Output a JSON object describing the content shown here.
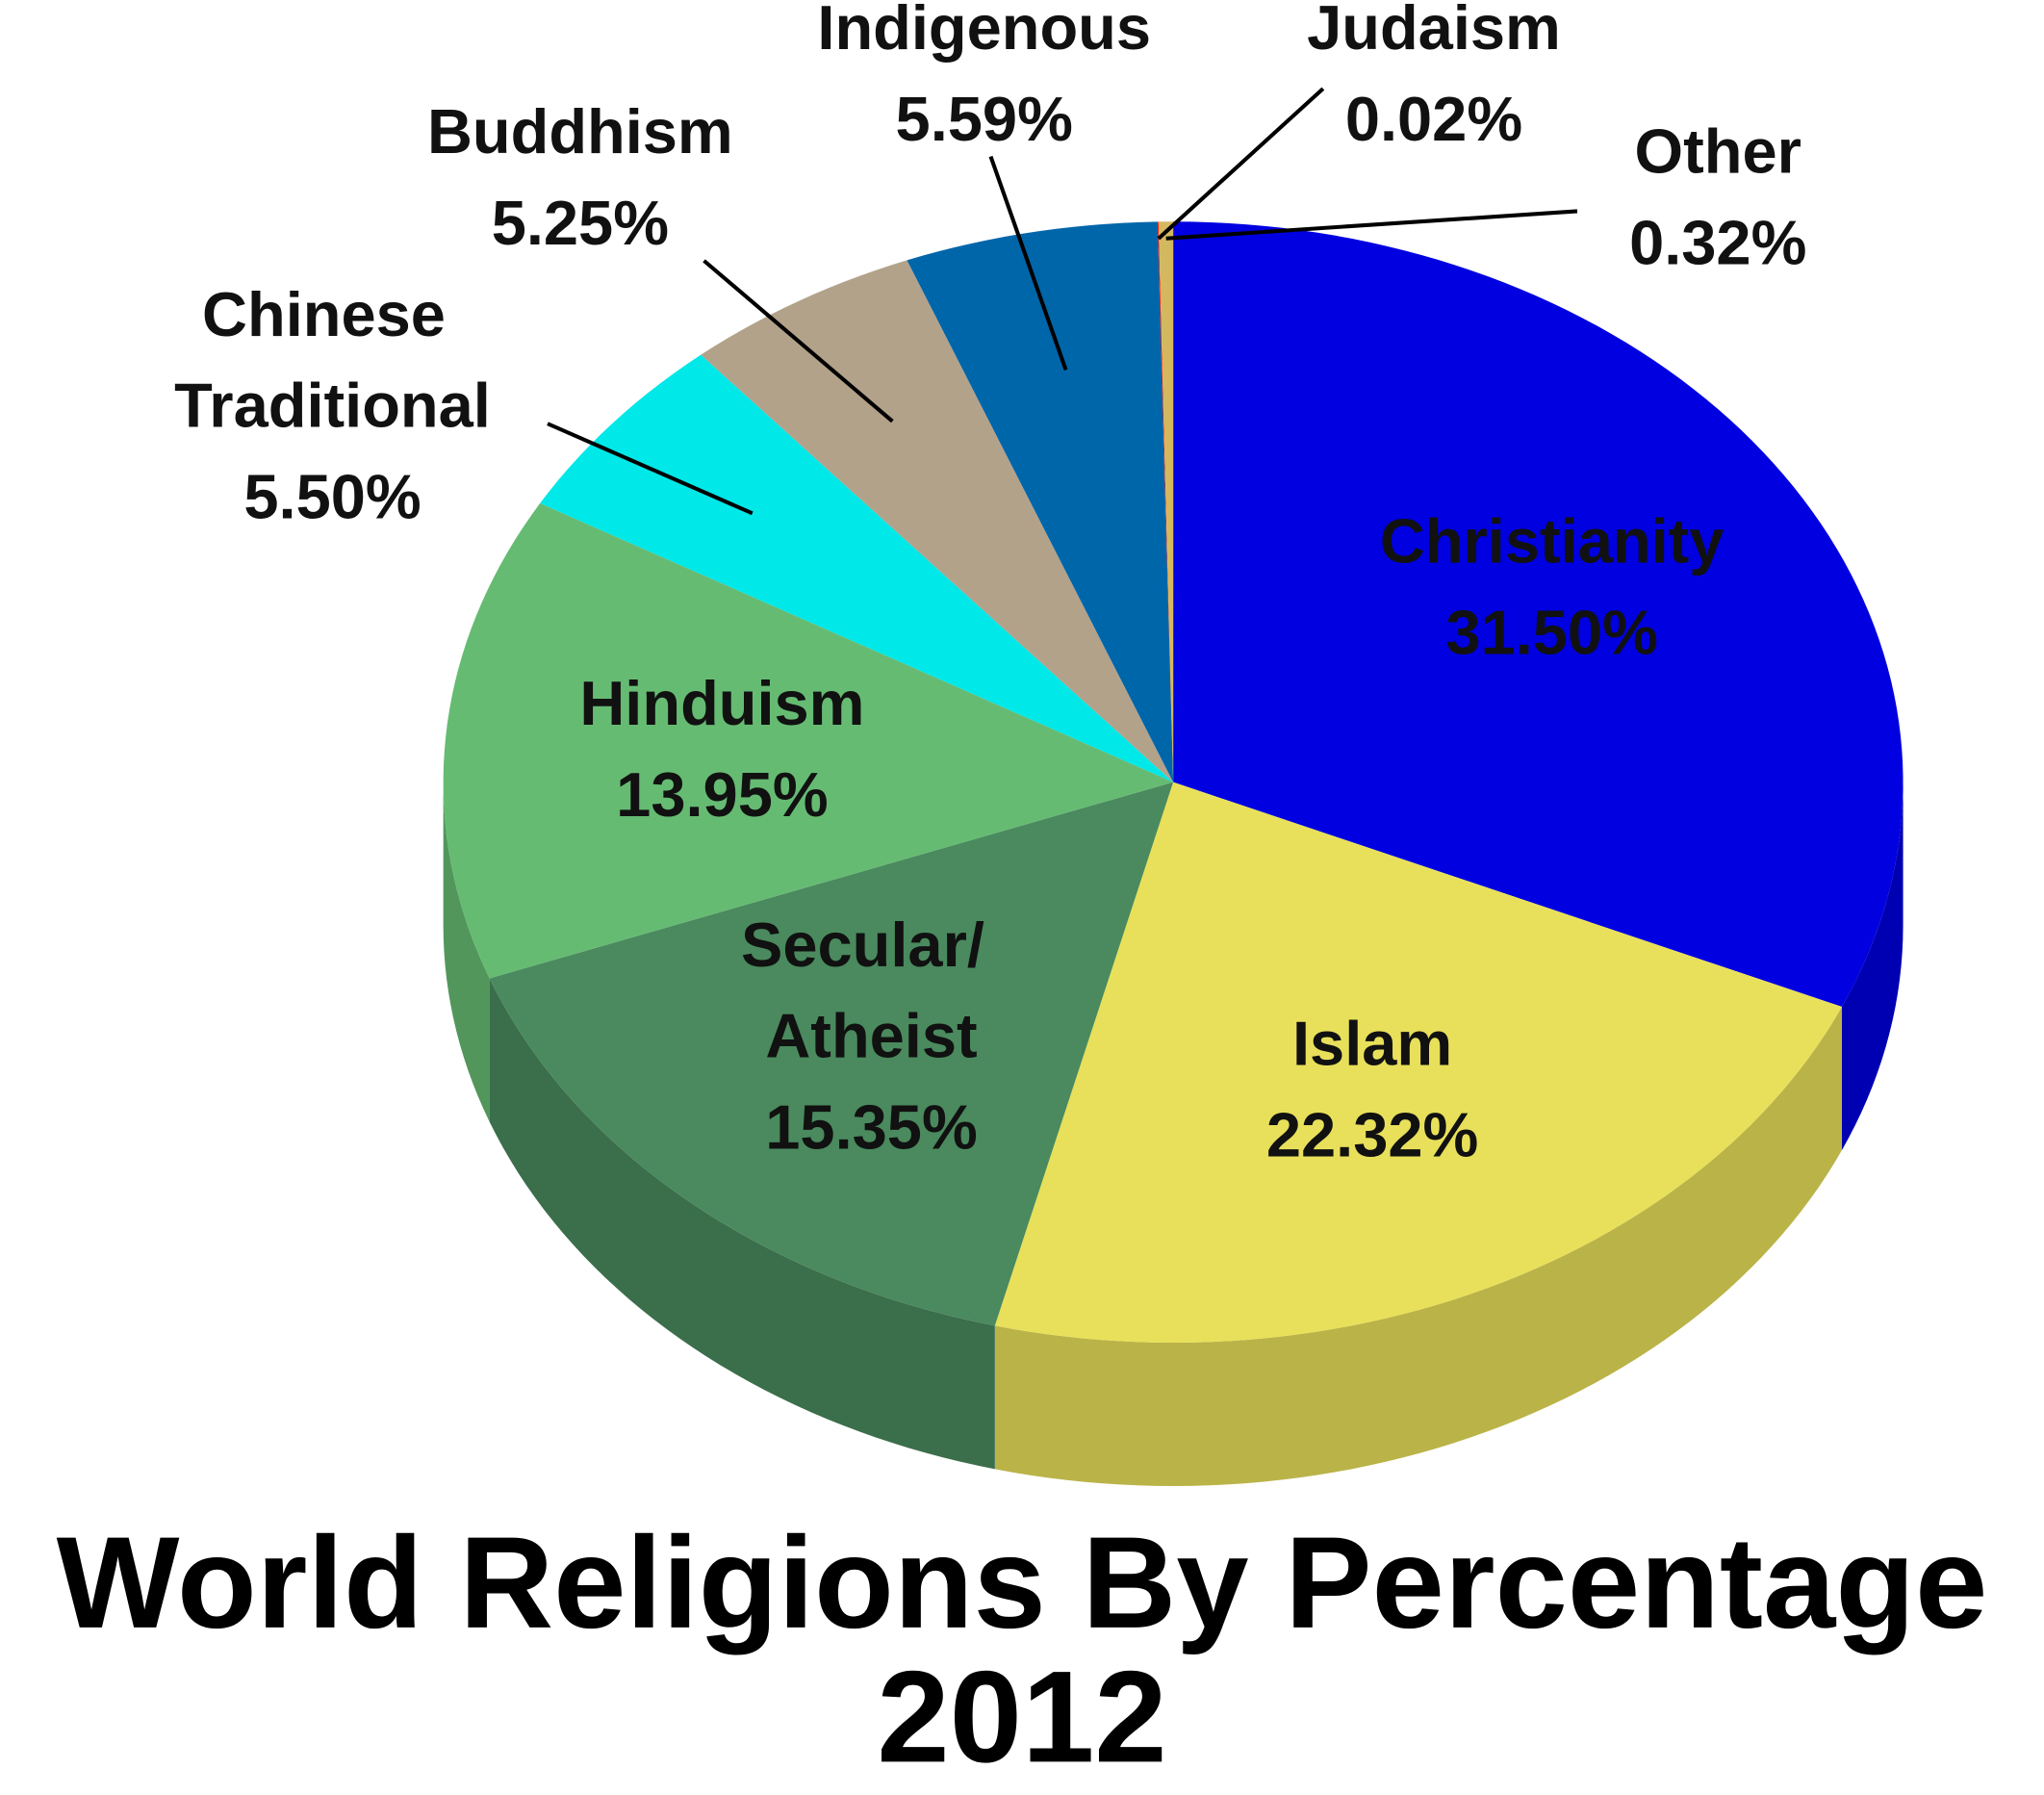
{
  "chart_data": {
    "type": "pie",
    "title": "World Religions By Percentage",
    "subtitle": "2012",
    "categories": [
      "Christianity",
      "Islam",
      "Secular/ Atheist",
      "Hinduism",
      "Chinese Traditional",
      "Buddhism",
      "Indigenous",
      "Judaism",
      "Other"
    ],
    "values": [
      31.5,
      22.32,
      15.35,
      13.95,
      5.5,
      5.25,
      5.59,
      0.02,
      0.32
    ],
    "value_labels": [
      "31.50%",
      "22.32%",
      "15.35%",
      "13.95%",
      "5.50%",
      "5.25%",
      "5.59%",
      "0.02%",
      "0.32%"
    ],
    "colors": [
      "#0000e0",
      "#e8e05a",
      "#4a8a5e",
      "#66bb73",
      "#00e8e8",
      "#b3a28a",
      "#0066aa",
      "#ff0000",
      "#d4b860"
    ]
  }
}
